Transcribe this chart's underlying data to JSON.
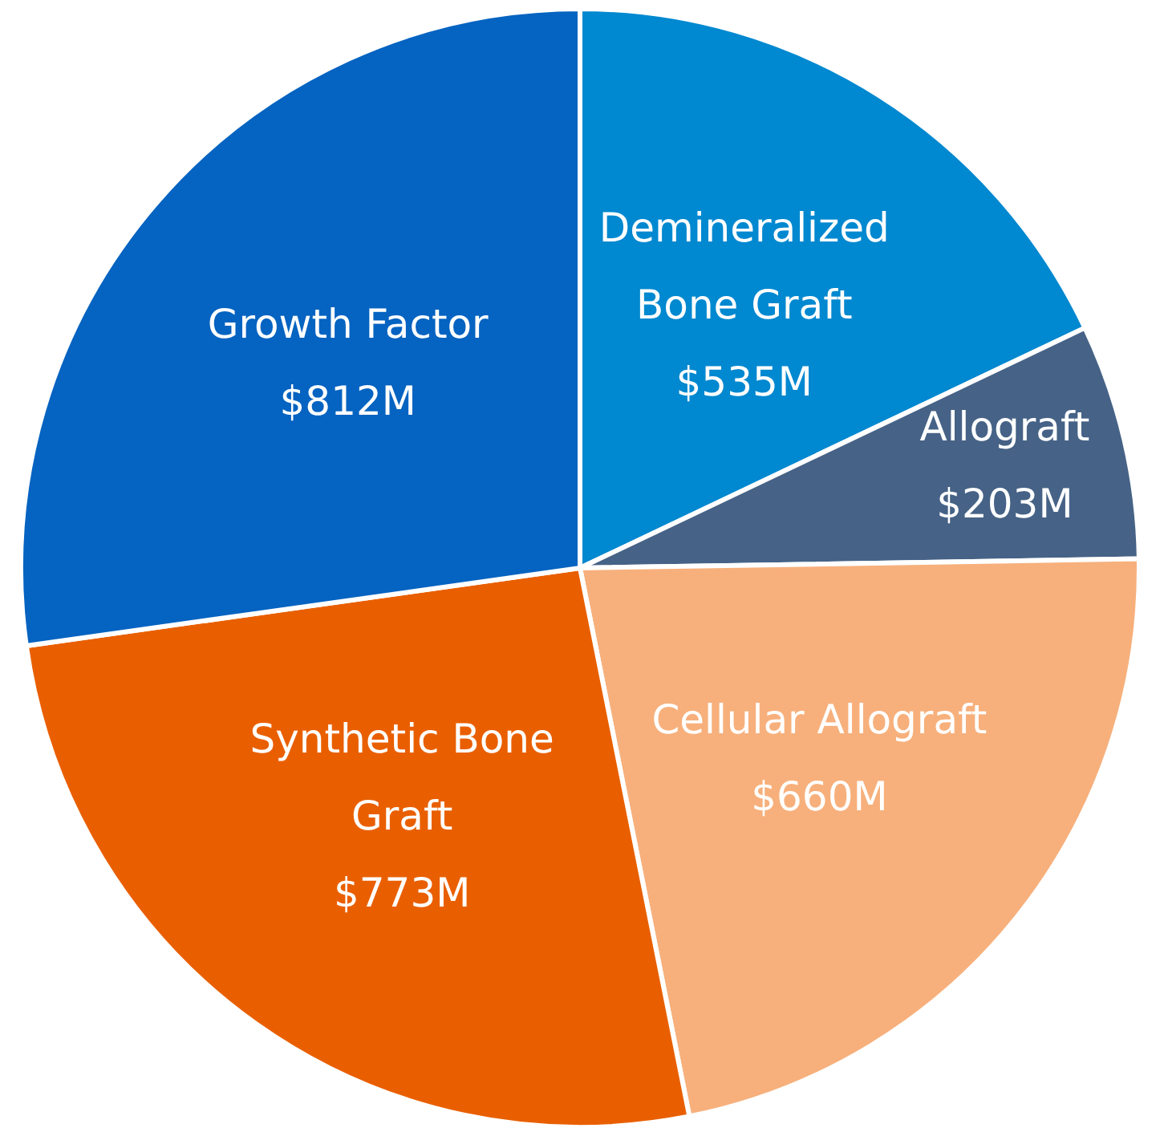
{
  "chart_data": {
    "type": "pie",
    "categories": [
      "Demineralized Bone Graft",
      "Allograft",
      "Cellular Allograft",
      "Synthetic Bone Graft",
      "Growth Factor"
    ],
    "values": [
      535,
      203,
      660,
      773,
      812
    ],
    "value_labels": [
      "$535M",
      "$203M",
      "$660M",
      "$773M",
      "$812M"
    ],
    "colors": [
      "#0088d0",
      "#466286",
      "#f7b07c",
      "#e95f00",
      "#0563c1"
    ],
    "legend": false
  }
}
